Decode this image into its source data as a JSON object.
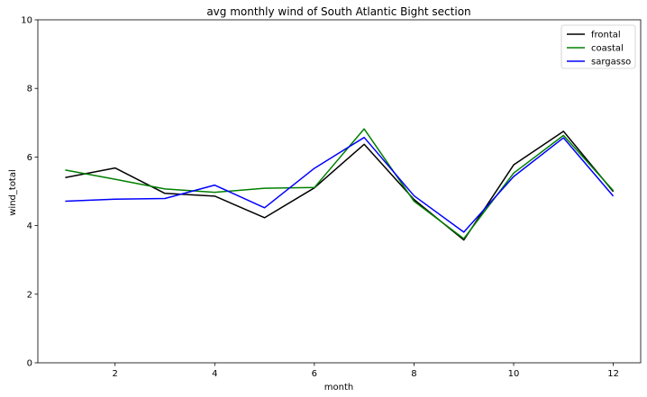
{
  "chart_data": {
    "type": "line",
    "title": "avg monthly wind of South Atlantic Bight section",
    "xlabel": "month",
    "ylabel": "wind_total",
    "xlim": [
      0.45,
      12.55
    ],
    "ylim": [
      0,
      10
    ],
    "xticks": [
      2,
      4,
      6,
      8,
      10,
      12
    ],
    "yticks": [
      0,
      2,
      4,
      6,
      8,
      10
    ],
    "legend": "top-right",
    "grid": false,
    "x": [
      1,
      2,
      3,
      4,
      5,
      6,
      7,
      8,
      9,
      10,
      11,
      12
    ],
    "series": [
      {
        "name": "frontal",
        "color": "#000000",
        "values": [
          5.4,
          5.68,
          4.94,
          4.86,
          4.23,
          5.1,
          6.37,
          4.76,
          3.58,
          5.77,
          6.75,
          4.99
        ]
      },
      {
        "name": "coastal",
        "color": "#008000",
        "values": [
          5.62,
          5.35,
          5.07,
          4.97,
          5.09,
          5.11,
          6.82,
          4.71,
          3.62,
          5.53,
          6.63,
          5.02
        ]
      },
      {
        "name": "sargasso",
        "color": "#0000ff",
        "values": [
          4.71,
          4.77,
          4.79,
          5.18,
          4.52,
          5.67,
          6.57,
          4.87,
          3.81,
          5.43,
          6.56,
          4.86
        ]
      }
    ]
  }
}
